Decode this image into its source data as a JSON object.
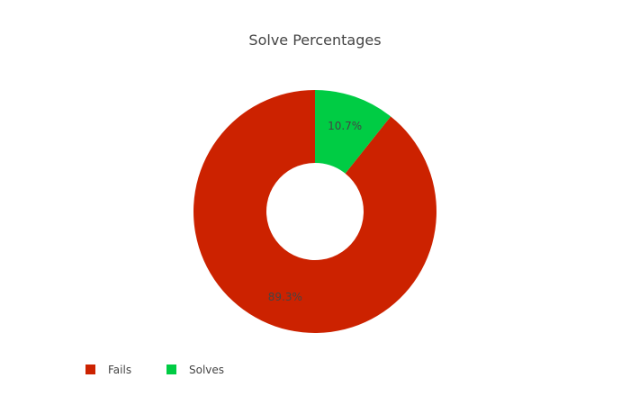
{
  "chart_data": {
    "type": "pie",
    "subtype": "donut",
    "title": "Solve Percentages",
    "labels": [
      "Fails",
      "Solves"
    ],
    "values": [
      89.3,
      10.7
    ],
    "display_labels": [
      "89.3%",
      "10.7%"
    ],
    "colors": [
      "#cc2200",
      "#00cc44"
    ],
    "legend": {
      "placement": "bottom-left",
      "orientation": "horizontal"
    }
  }
}
